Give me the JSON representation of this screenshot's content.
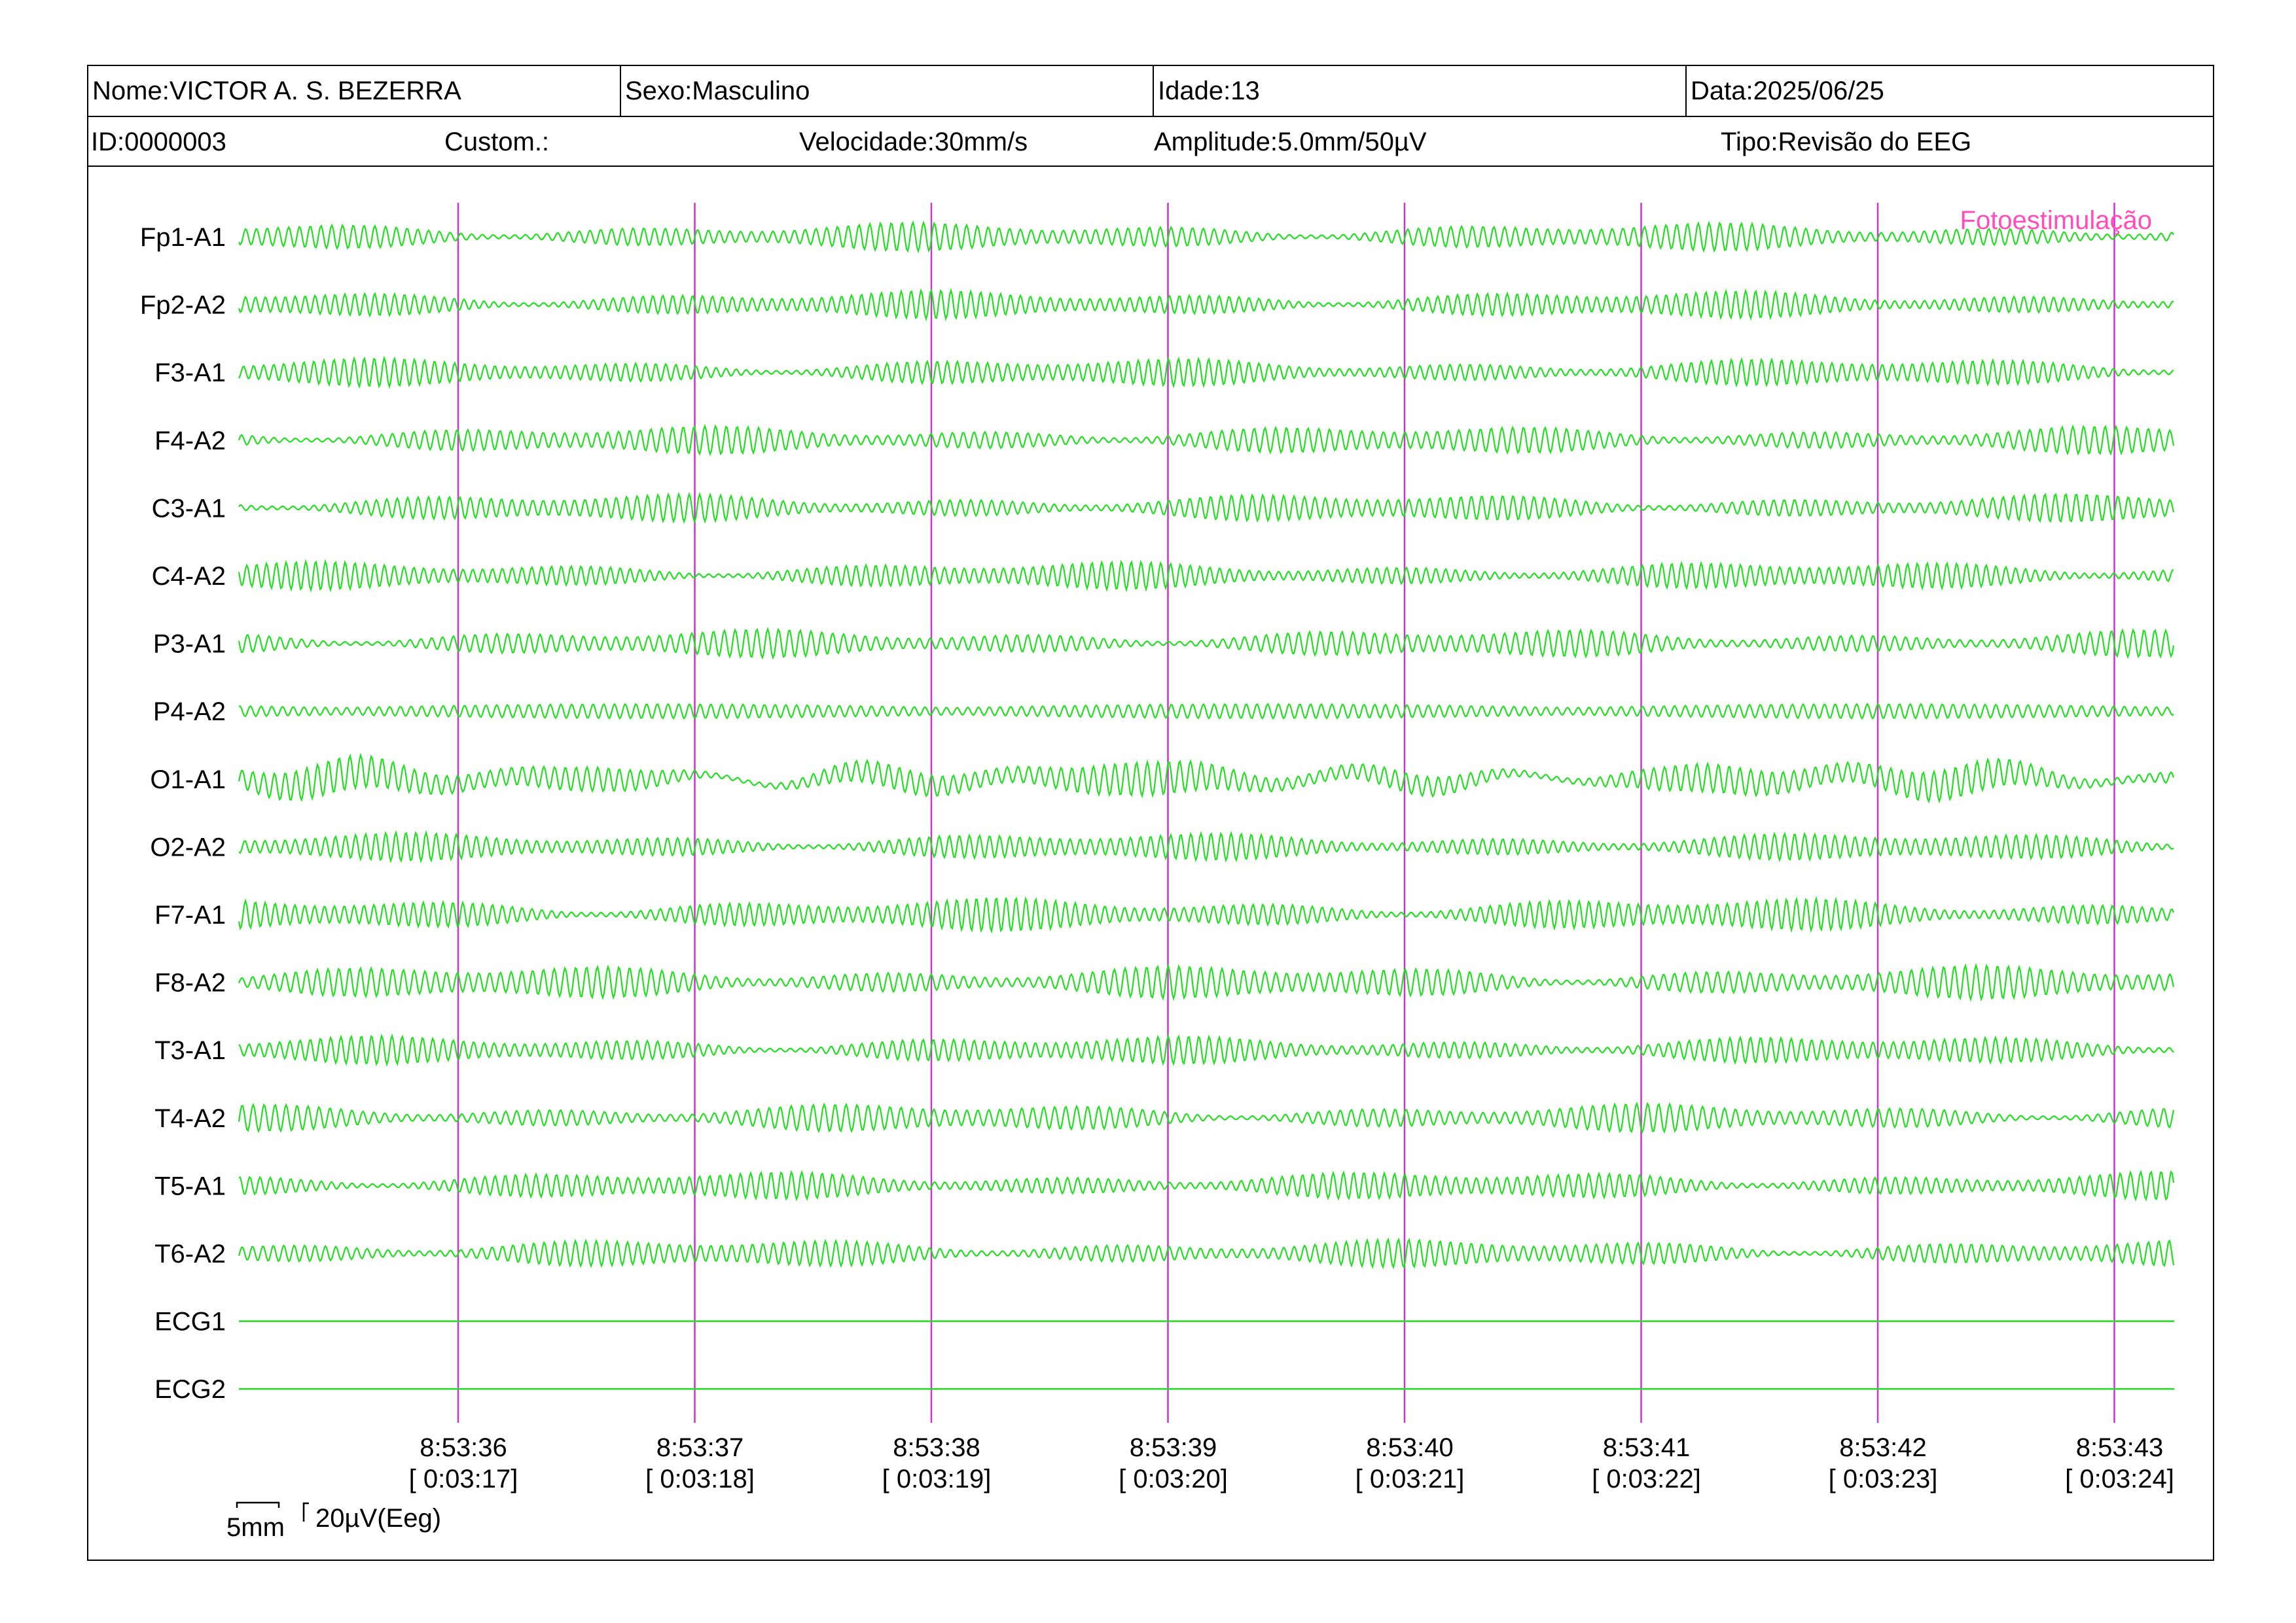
{
  "header": {
    "nome": "Nome:VICTOR A. S. BEZERRA",
    "sexo": "Sexo:Masculino",
    "idade": "Idade:13",
    "data": "Data:2025/06/25",
    "id": "ID:0000003",
    "custom": "Custom.:",
    "velocidade": "Velocidade:30mm/s",
    "amplitude": "Amplitude:5.0mm/50µV",
    "tipo": "Tipo:Revisão do EEG"
  },
  "event_label": "Fotoestimulação",
  "colors": {
    "trace": "#22dd22",
    "marker": "#cc33cc",
    "event": "#ff4dbb"
  },
  "channels": [
    {
      "name": "Fp1-A1",
      "amp": "mixed"
    },
    {
      "name": "Fp2-A2",
      "amp": "mixed"
    },
    {
      "name": "F3-A1",
      "amp": "mixed"
    },
    {
      "name": "F4-A2",
      "amp": "mixed"
    },
    {
      "name": "C3-A1",
      "amp": "mixed"
    },
    {
      "name": "C4-A2",
      "amp": "mixed"
    },
    {
      "name": "P3-A1",
      "amp": "mixed"
    },
    {
      "name": "P4-A2",
      "amp": "low"
    },
    {
      "name": "O1-A1",
      "amp": "high"
    },
    {
      "name": "O2-A2",
      "amp": "mixed"
    },
    {
      "name": "F7-A1",
      "amp": "high"
    },
    {
      "name": "F8-A2",
      "amp": "high"
    },
    {
      "name": "T3-A1",
      "amp": "mixed"
    },
    {
      "name": "T4-A2",
      "amp": "mixed"
    },
    {
      "name": "T5-A1",
      "amp": "mixed"
    },
    {
      "name": "T6-A2",
      "amp": "mixed"
    },
    {
      "name": "ECG1",
      "amp": "flat"
    },
    {
      "name": "ECG2",
      "amp": "flat"
    }
  ],
  "time_markers": [
    {
      "clock": "8:53:36",
      "elapsed": "[ 0:03:17]"
    },
    {
      "clock": "8:53:37",
      "elapsed": "[ 0:03:18]"
    },
    {
      "clock": "8:53:38",
      "elapsed": "[ 0:03:19]"
    },
    {
      "clock": "8:53:39",
      "elapsed": "[ 0:03:20]"
    },
    {
      "clock": "8:53:40",
      "elapsed": "[ 0:03:21]"
    },
    {
      "clock": "8:53:41",
      "elapsed": "[ 0:03:22]"
    },
    {
      "clock": "8:53:42",
      "elapsed": "[ 0:03:23]"
    },
    {
      "clock": "8:53:43",
      "elapsed": "[ 0:03:24]"
    }
  ],
  "scale": {
    "time": "5mm",
    "amplitude": "20µV(Eeg)"
  }
}
